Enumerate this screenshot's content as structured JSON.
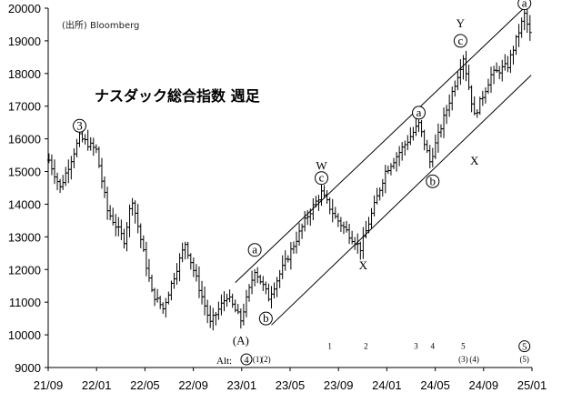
{
  "chart_data": {
    "type": "ohlc",
    "title": "ナスダック総合指数 週足",
    "source": "(出所) Bloomberg",
    "xlabel": "",
    "ylabel": "",
    "ylim": [
      9000,
      20000
    ],
    "grid": false,
    "x_ticks": [
      "21/09",
      "22/01",
      "22/05",
      "22/09",
      "23/01",
      "23/05",
      "23/09",
      "24/01",
      "24/05",
      "24/09",
      "25/01"
    ],
    "y_ticks": [
      9000,
      10000,
      11000,
      12000,
      13000,
      14000,
      15000,
      16000,
      17000,
      18000,
      19000,
      20000
    ],
    "x_start": "2021-09-01",
    "x_end": "2025-01-01",
    "anchors": [
      [
        "2021-09-03",
        15350
      ],
      [
        "2021-10-01",
        14500
      ],
      [
        "2021-11-19",
        16050
      ],
      [
        "2021-12-31",
        15650
      ],
      [
        "2022-01-28",
        13800
      ],
      [
        "2022-03-11",
        12900
      ],
      [
        "2022-03-31",
        14200
      ],
      [
        "2022-05-20",
        11300
      ],
      [
        "2022-06-17",
        10800
      ],
      [
        "2022-08-12",
        12800
      ],
      [
        "2022-10-14",
        10350
      ],
      [
        "2022-11-25",
        11200
      ],
      [
        "2022-12-30",
        10450
      ],
      [
        "2023-02-03",
        12000
      ],
      [
        "2023-03-10",
        11150
      ],
      [
        "2023-06-16",
        13650
      ],
      [
        "2023-07-21",
        14350
      ],
      [
        "2023-08-25",
        13600
      ],
      [
        "2023-10-27",
        12650
      ],
      [
        "2023-12-29",
        15000
      ],
      [
        "2024-02-23",
        15950
      ],
      [
        "2024-03-22",
        16450
      ],
      [
        "2024-04-19",
        15300
      ],
      [
        "2024-07-12",
        18500
      ],
      [
        "2024-08-09",
        16700
      ],
      [
        "2024-09-20",
        17950
      ],
      [
        "2024-11-01",
        18250
      ],
      [
        "2024-12-13",
        19800
      ],
      [
        "2024-12-27",
        19200
      ]
    ],
    "channel": [
      {
        "from": [
          "2022-12-16",
          11600
        ],
        "to": [
          "2024-12-20",
          20100
        ]
      },
      {
        "from": [
          "2023-03-17",
          10300
        ],
        "to": [
          "2024-12-30",
          17950
        ]
      }
    ],
    "labels": [
      {
        "text": "3",
        "at": [
          "2021-11-19",
          16400
        ],
        "circled": true
      },
      {
        "text": "(A)",
        "at": [
          "2022-12-30",
          9850
        ],
        "circled": false
      },
      {
        "text": "a",
        "at": [
          "2023-02-03",
          12600
        ],
        "circled": true
      },
      {
        "text": "b",
        "at": [
          "2023-03-03",
          10500
        ],
        "circled": true
      },
      {
        "text": "W",
        "at": [
          "2023-07-21",
          15200
        ],
        "circled": false
      },
      {
        "text": "c",
        "at": [
          "2023-07-21",
          14800
        ],
        "circled": true
      },
      {
        "text": "X",
        "at": [
          "2023-11-03",
          12150
        ],
        "circled": false
      },
      {
        "text": "a",
        "at": [
          "2024-03-22",
          16800
        ],
        "circled": true
      },
      {
        "text": "b",
        "at": [
          "2024-04-26",
          14700
        ],
        "circled": true
      },
      {
        "text": "Y",
        "at": [
          "2024-07-05",
          19550
        ],
        "circled": false
      },
      {
        "text": "c",
        "at": [
          "2024-07-05",
          19000
        ],
        "circled": true
      },
      {
        "text": "X",
        "at": [
          "2024-08-09",
          15350
        ],
        "circled": false
      },
      {
        "text": "a",
        "at": [
          "2024-12-13",
          20150
        ],
        "circled": true
      }
    ],
    "alt_count": {
      "prefix": "Alt:",
      "items": [
        {
          "text": "4",
          "at": [
            "2023-01-13",
            9250
          ],
          "style": "circled"
        },
        {
          "text": "(1)",
          "at": [
            "2023-02-10",
            9250
          ],
          "style": "small"
        },
        {
          "text": "(2)",
          "at": [
            "2023-03-03",
            9250
          ],
          "style": "small"
        },
        {
          "text": "1",
          "at": [
            "2023-08-11",
            9650
          ],
          "style": "small"
        },
        {
          "text": "2",
          "at": [
            "2023-11-10",
            9650
          ],
          "style": "small"
        },
        {
          "text": "3",
          "at": [
            "2024-03-15",
            9650
          ],
          "style": "small"
        },
        {
          "text": "4",
          "at": [
            "2024-04-26",
            9650
          ],
          "style": "small"
        },
        {
          "text": "5",
          "at": [
            "2024-07-12",
            9650
          ],
          "style": "small"
        },
        {
          "text": "(3)",
          "at": [
            "2024-07-12",
            9250
          ],
          "style": "small"
        },
        {
          "text": "(4)",
          "at": [
            "2024-08-09",
            9250
          ],
          "style": "small"
        },
        {
          "text": "5",
          "at": [
            "2024-12-13",
            9650
          ],
          "style": "circled"
        },
        {
          "text": "(5)",
          "at": [
            "2024-12-13",
            9250
          ],
          "style": "small"
        }
      ]
    }
  }
}
